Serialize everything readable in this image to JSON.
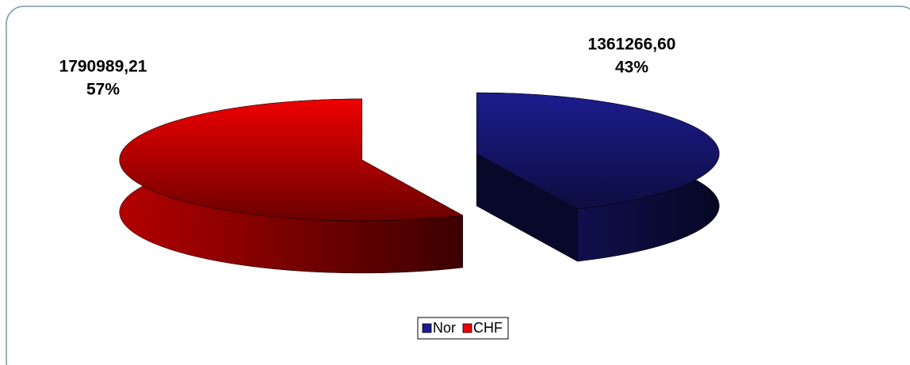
{
  "chart_data": {
    "type": "pie3d",
    "categories": [
      "Nor",
      "CHF"
    ],
    "values": [
      1361266.6,
      1790989.21
    ],
    "value_labels": [
      "1361266,60",
      "1790989,21"
    ],
    "percentages": [
      43,
      57
    ],
    "percentage_labels": [
      "43%",
      "57%"
    ],
    "colors": [
      "#1c1c8e",
      "#ee0000"
    ],
    "legend": "bottom"
  }
}
